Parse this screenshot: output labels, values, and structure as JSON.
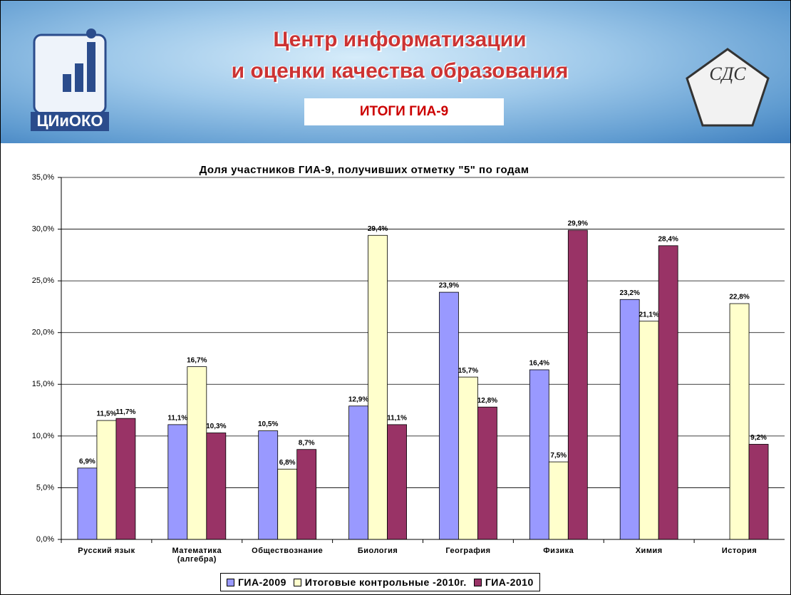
{
  "header": {
    "title_line1": "Центр информатизации",
    "title_line2": "и оценки качества образования",
    "subtitle": "ИТОГИ ГИА-9",
    "logo_left": "ЦИиОКО",
    "logo_right": "СДС"
  },
  "chart_data": {
    "type": "bar",
    "title": "Доля участников ГИА-9, получивших отметку \"5\" по годам",
    "categories": [
      "Русский язык",
      "Математика (алгебра)",
      "Обществознание",
      "Биология",
      "География",
      "Физика",
      "Химия",
      "История"
    ],
    "series": [
      {
        "name": "ГИА-2009",
        "color": "#9999ff",
        "values": [
          6.9,
          11.1,
          10.5,
          12.9,
          23.9,
          16.4,
          23.2,
          null
        ],
        "value_labels": [
          "6,9%",
          "11,1%",
          "10,5%",
          "12,9%",
          "23,9%",
          "16,4%",
          "23,2%",
          null
        ]
      },
      {
        "name": "Итоговые контрольные -2010г.",
        "color": "#ffffcc",
        "values": [
          11.5,
          16.7,
          6.8,
          29.4,
          15.7,
          7.5,
          21.1,
          22.8
        ],
        "value_labels": [
          "11,5%",
          "16,7%",
          "6,8%",
          "29,4%",
          "15,7%",
          "7,5%",
          "21,1%",
          "22,8%"
        ]
      },
      {
        "name": "ГИА-2010",
        "color": "#993366",
        "values": [
          11.7,
          10.3,
          8.7,
          11.1,
          12.8,
          29.9,
          28.4,
          9.2
        ],
        "value_labels": [
          "11,7%",
          "10,3%",
          "8,7%",
          "11,1%",
          "12,8%",
          "29,9%",
          "28,4%",
          "9,2%"
        ]
      }
    ],
    "ylim": [
      0,
      35
    ],
    "yticks": [
      {
        "value": 0,
        "label": "0,0%"
      },
      {
        "value": 5,
        "label": "5,0%"
      },
      {
        "value": 10,
        "label": "10,0%"
      },
      {
        "value": 15,
        "label": "15,0%"
      },
      {
        "value": 20,
        "label": "20,0%"
      },
      {
        "value": 25,
        "label": "25,0%"
      },
      {
        "value": 30,
        "label": "30,0%"
      },
      {
        "value": 35,
        "label": "35,0%"
      }
    ],
    "grid": true
  }
}
